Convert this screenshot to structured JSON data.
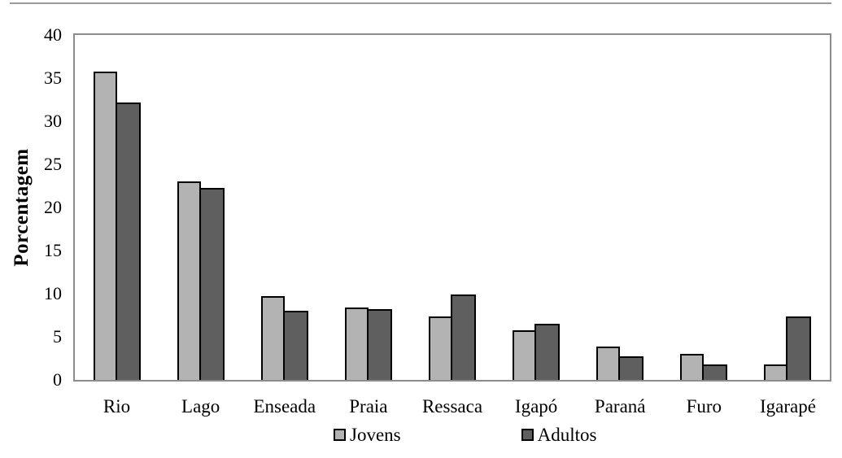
{
  "chart_data": {
    "type": "bar",
    "title": "",
    "xlabel": "",
    "ylabel": "Porcentagem",
    "ylim": [
      0,
      40
    ],
    "y_ticks": [
      40,
      35,
      30,
      25,
      20,
      15,
      10,
      5,
      0
    ],
    "grid": false,
    "legend_position": "bottom-center",
    "axis_color": "#8c8c8c",
    "bar_border_color": "#000000",
    "categories": [
      "Rio",
      "Lago",
      "Enseada",
      "Praia",
      "Ressaca",
      "Igapó",
      "Paraná",
      "Furo",
      "Igarapé"
    ],
    "series": [
      {
        "name": "Jovens",
        "color": "#b3b3b3",
        "values": [
          35.8,
          23.0,
          9.7,
          8.4,
          7.4,
          5.8,
          3.9,
          3.0,
          1.8
        ]
      },
      {
        "name": "Adultos",
        "color": "#5f5f5f",
        "values": [
          32.2,
          22.3,
          8.0,
          8.2,
          9.9,
          6.5,
          2.7,
          1.8,
          7.4
        ]
      }
    ]
  }
}
